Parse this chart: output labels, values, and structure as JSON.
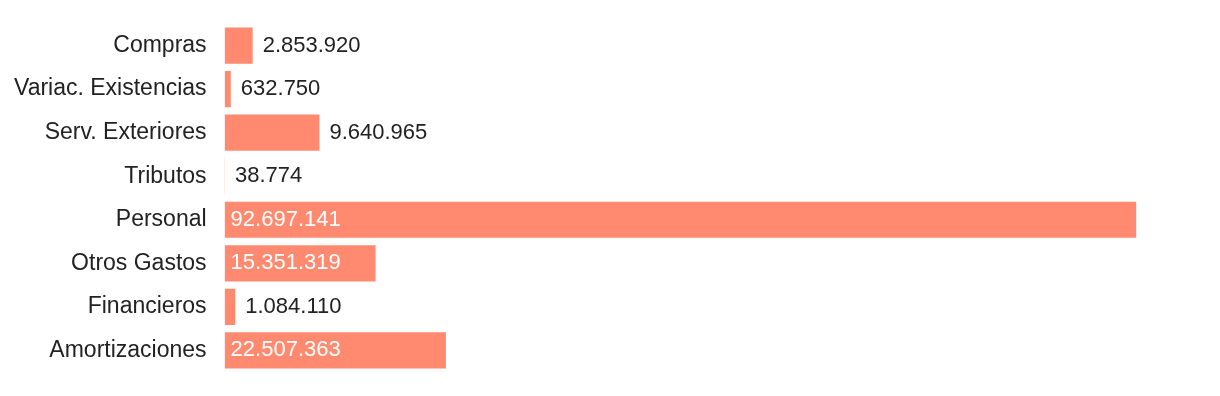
{
  "chart_data": {
    "type": "bar",
    "orientation": "horizontal",
    "color": "#ff8a70",
    "value_labels": [
      "2.853.920",
      "632.750",
      "9.640.965",
      "38.774",
      "92.697.141",
      "15.351.319",
      "1.084.110",
      "22.507.363"
    ],
    "categories": [
      "Compras",
      "Variac. Existencias",
      "Serv. Exteriores",
      "Tributos",
      "Personal",
      "Otros Gastos",
      "Financieros",
      "Amortizaciones"
    ],
    "values": [
      2853920,
      632750,
      9640965,
      38774,
      92697141,
      15351319,
      1084110,
      22507363
    ]
  }
}
